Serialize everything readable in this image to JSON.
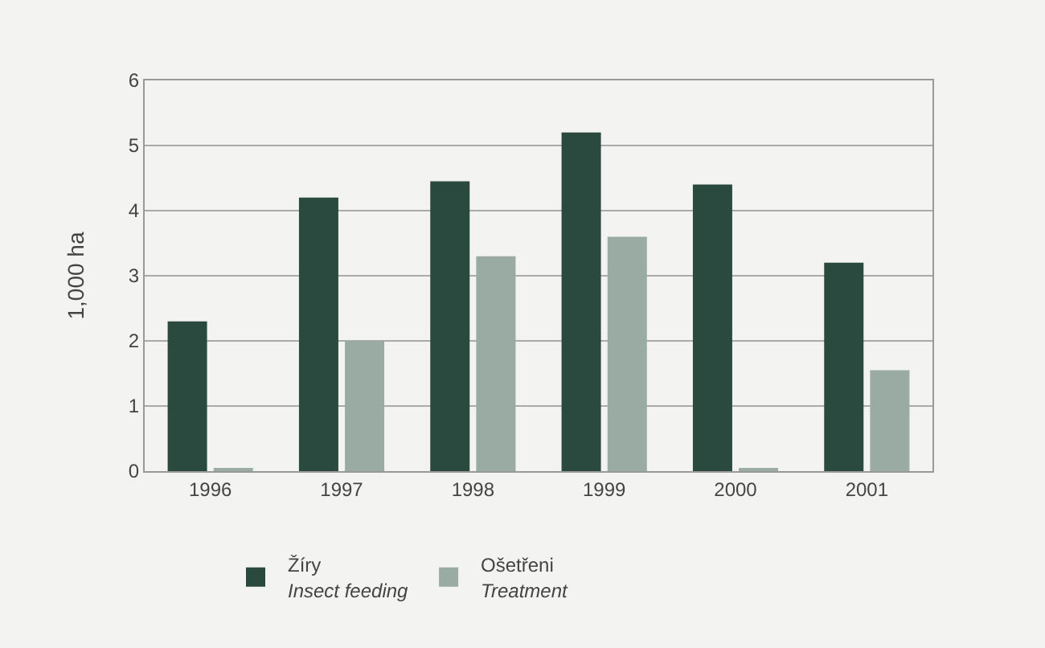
{
  "chart_data": {
    "type": "bar",
    "ylabel": "1,000 ha",
    "categories": [
      "1996",
      "1997",
      "1998",
      "1999",
      "2000",
      "2001"
    ],
    "series": [
      {
        "name": "Žíry\nInsect feeding",
        "color": "#2a4a3f",
        "values": [
          2.3,
          4.2,
          4.45,
          5.2,
          4.4,
          3.2
        ]
      },
      {
        "name": "Ošetřeni\nTreatment",
        "color": "#9aaba3",
        "values": [
          0.05,
          2.0,
          3.3,
          3.6,
          0.05,
          1.55
        ]
      }
    ],
    "ylim": [
      0,
      6
    ],
    "yticks": [
      0,
      1,
      2,
      3,
      4,
      5,
      6
    ],
    "grid": "y",
    "legend": "bottom"
  }
}
